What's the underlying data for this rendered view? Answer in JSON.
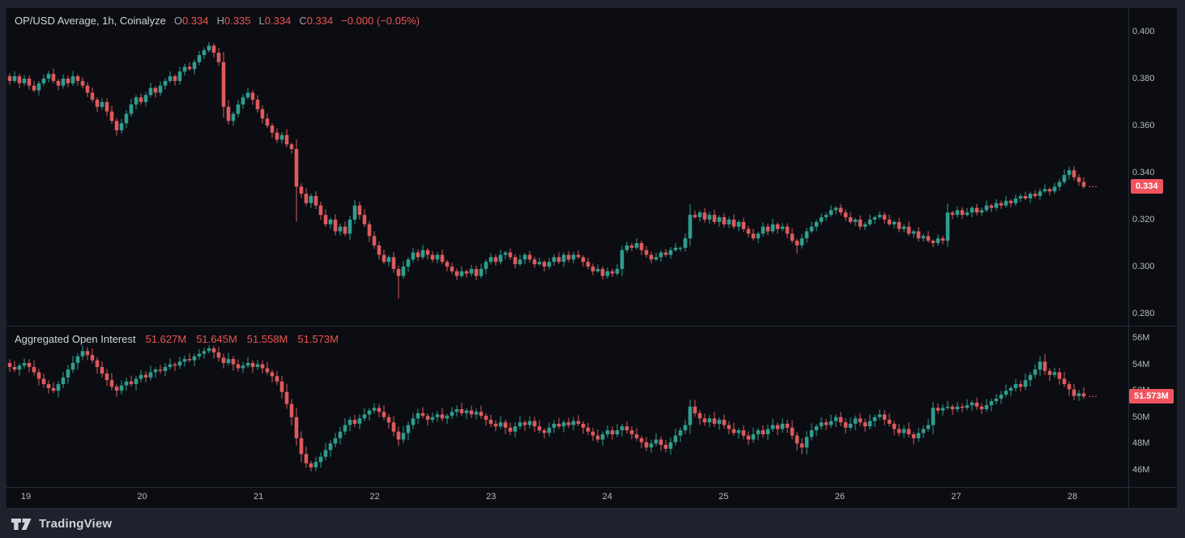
{
  "header": {
    "title": "OP/USD Average, 1h, Coinalyze",
    "o_label": "O",
    "o_value": "0.334",
    "h_label": "H",
    "h_value": "0.335",
    "l_label": "L",
    "l_value": "0.334",
    "c_label": "C",
    "c_value": "0.334",
    "change": "−0.000 (−0.05%)"
  },
  "oi_header": {
    "title": "Aggregated Open Interest",
    "values": [
      "51.627M",
      "51.645M",
      "51.558M",
      "51.573M"
    ]
  },
  "price_axis": {
    "last_price_label": "0.334"
  },
  "oi_axis": {
    "last_label": "51.573M"
  },
  "branding": {
    "logo_text": "TradingView"
  },
  "colors": {
    "up": "#2f9e8f",
    "down": "#dd5a5e",
    "badge": "#f0545e",
    "red_text": "#ef5350",
    "background": "#0b0d12",
    "frame": "#1e222d",
    "border": "#262b38",
    "text": "#b6b9c1"
  },
  "chart_data": [
    {
      "type": "candlestick",
      "name": "OP/USD Average, 1h, Coinalyze",
      "pane": "price",
      "ohlc_legend": {
        "open": 0.334,
        "high": 0.335,
        "low": 0.334,
        "close": 0.334,
        "change_pct": -0.05
      },
      "y_axis": {
        "ticks": [
          "0.400",
          "0.380",
          "0.360",
          "0.340",
          "0.320",
          "0.300",
          "0.280"
        ],
        "tick_values": [
          0.4,
          0.38,
          0.36,
          0.34,
          0.32,
          0.3,
          0.28
        ],
        "range": [
          0.28,
          0.4
        ],
        "grid": false,
        "side": "right"
      },
      "last_price": 0.334,
      "closes": [
        0.379,
        0.381,
        0.378,
        0.38,
        0.377,
        0.375,
        0.378,
        0.38,
        0.382,
        0.379,
        0.377,
        0.38,
        0.378,
        0.381,
        0.379,
        0.377,
        0.374,
        0.371,
        0.368,
        0.37,
        0.366,
        0.362,
        0.358,
        0.361,
        0.365,
        0.369,
        0.372,
        0.37,
        0.373,
        0.376,
        0.374,
        0.377,
        0.379,
        0.381,
        0.379,
        0.383,
        0.385,
        0.384,
        0.387,
        0.39,
        0.392,
        0.394,
        0.391,
        0.387,
        0.368,
        0.362,
        0.365,
        0.369,
        0.372,
        0.374,
        0.371,
        0.367,
        0.363,
        0.36,
        0.357,
        0.354,
        0.356,
        0.352,
        0.35,
        0.334,
        0.331,
        0.327,
        0.33,
        0.326,
        0.322,
        0.318,
        0.32,
        0.315,
        0.317,
        0.314,
        0.32,
        0.326,
        0.322,
        0.318,
        0.313,
        0.309,
        0.305,
        0.302,
        0.304,
        0.299,
        0.296,
        0.3,
        0.303,
        0.306,
        0.304,
        0.307,
        0.305,
        0.303,
        0.305,
        0.302,
        0.3,
        0.298,
        0.296,
        0.298,
        0.297,
        0.299,
        0.296,
        0.299,
        0.302,
        0.304,
        0.302,
        0.305,
        0.306,
        0.304,
        0.301,
        0.303,
        0.305,
        0.303,
        0.301,
        0.302,
        0.3,
        0.302,
        0.304,
        0.302,
        0.305,
        0.303,
        0.305,
        0.304,
        0.302,
        0.3,
        0.298,
        0.299,
        0.296,
        0.298,
        0.297,
        0.299,
        0.307,
        0.309,
        0.308,
        0.31,
        0.307,
        0.305,
        0.303,
        0.304,
        0.306,
        0.305,
        0.307,
        0.308,
        0.308,
        0.312,
        0.322,
        0.321,
        0.323,
        0.32,
        0.322,
        0.319,
        0.321,
        0.318,
        0.32,
        0.317,
        0.319,
        0.316,
        0.314,
        0.312,
        0.314,
        0.317,
        0.315,
        0.318,
        0.316,
        0.317,
        0.314,
        0.311,
        0.309,
        0.312,
        0.315,
        0.317,
        0.319,
        0.321,
        0.322,
        0.324,
        0.325,
        0.323,
        0.321,
        0.319,
        0.32,
        0.317,
        0.318,
        0.32,
        0.321,
        0.322,
        0.32,
        0.318,
        0.319,
        0.316,
        0.317,
        0.314,
        0.315,
        0.312,
        0.313,
        0.311,
        0.31,
        0.312,
        0.311,
        0.323,
        0.322,
        0.324,
        0.322,
        0.323,
        0.325,
        0.323,
        0.324,
        0.326,
        0.325,
        0.327,
        0.326,
        0.328,
        0.327,
        0.329,
        0.33,
        0.329,
        0.331,
        0.33,
        0.332,
        0.333,
        0.332,
        0.334,
        0.336,
        0.339,
        0.341,
        0.338,
        0.336,
        0.334
      ],
      "wick_high_overrides": {
        "41": 0.3955,
        "140": 0.3265,
        "218": 0.3425
      },
      "wick_low_overrides": {
        "59": 0.319,
        "80": 0.2865,
        "122": 0.2945,
        "162": 0.3055
      }
    },
    {
      "type": "candlestick",
      "name": "Aggregated Open Interest",
      "pane": "oi",
      "unit": "M",
      "ohlc_legend": {
        "open": 51.627,
        "high": 51.645,
        "low": 51.558,
        "close": 51.573
      },
      "y_axis": {
        "ticks": [
          "56M",
          "54M",
          "52M",
          "50M",
          "48M",
          "46M"
        ],
        "tick_values": [
          56,
          54,
          52,
          50,
          48,
          46
        ],
        "range": [
          46,
          56
        ],
        "grid": false,
        "side": "right"
      },
      "last_price": 51.573,
      "closes": [
        53.8,
        53.6,
        53.9,
        54.1,
        53.8,
        53.4,
        52.9,
        52.5,
        52.2,
        52.0,
        52.5,
        53.0,
        53.6,
        54.1,
        54.6,
        55.0,
        54.7,
        54.3,
        53.8,
        53.3,
        52.8,
        52.3,
        52.0,
        52.4,
        52.7,
        52.5,
        52.9,
        53.2,
        53.0,
        53.4,
        53.6,
        53.5,
        53.8,
        54.0,
        53.9,
        54.2,
        54.4,
        54.3,
        54.6,
        54.8,
        55.0,
        55.2,
        54.9,
        54.5,
        54.1,
        54.4,
        54.0,
        53.7,
        53.9,
        54.1,
        53.8,
        54.0,
        53.7,
        53.4,
        53.1,
        52.7,
        51.9,
        51.0,
        50.0,
        48.4,
        47.2,
        46.5,
        46.2,
        46.6,
        47.0,
        47.5,
        48.0,
        48.4,
        48.9,
        49.4,
        49.8,
        49.5,
        49.9,
        50.2,
        50.5,
        50.7,
        50.4,
        50.0,
        49.6,
        48.9,
        48.3,
        48.8,
        49.4,
        49.9,
        50.3,
        50.1,
        49.8,
        50.0,
        50.2,
        49.9,
        50.1,
        50.4,
        50.6,
        50.3,
        50.5,
        50.2,
        50.4,
        50.1,
        49.8,
        49.5,
        49.3,
        49.6,
        49.2,
        48.9,
        49.3,
        49.6,
        49.4,
        49.7,
        49.3,
        49.0,
        48.8,
        49.2,
        49.5,
        49.3,
        49.6,
        49.4,
        49.7,
        49.5,
        49.2,
        48.9,
        48.6,
        48.3,
        48.7,
        49.0,
        48.7,
        49.0,
        49.3,
        49.0,
        48.7,
        48.4,
        48.1,
        47.7,
        48.0,
        48.3,
        47.9,
        47.6,
        48.1,
        48.6,
        49.0,
        49.4,
        50.8,
        50.3,
        49.9,
        49.6,
        49.9,
        49.5,
        49.8,
        49.4,
        49.1,
        48.8,
        49.0,
        48.6,
        48.3,
        48.7,
        49.0,
        48.7,
        49.1,
        49.4,
        49.1,
        49.5,
        49.2,
        48.6,
        48.0,
        47.7,
        48.5,
        49.0,
        49.3,
        49.6,
        49.4,
        49.7,
        50.0,
        49.6,
        49.2,
        49.5,
        49.9,
        49.6,
        49.3,
        49.7,
        50.0,
        50.2,
        49.8,
        49.5,
        49.1,
        48.8,
        49.1,
        48.7,
        48.4,
        48.8,
        49.1,
        49.4,
        50.7,
        50.5,
        50.7,
        50.8,
        50.6,
        50.8,
        50.7,
        50.9,
        51.1,
        50.8,
        50.6,
        50.9,
        51.2,
        51.4,
        51.7,
        52.0,
        52.2,
        52.5,
        52.3,
        52.8,
        53.2,
        53.6,
        54.2,
        53.5,
        53.2,
        53.4,
        52.9,
        52.5,
        52.1,
        51.6,
        51.8,
        51.573
      ],
      "wick_high_overrides": {
        "41": 55.45,
        "140": 51.3,
        "212": 54.6
      },
      "wick_low_overrides": {
        "62": 45.9,
        "163": 47.2
      }
    }
  ],
  "time_axis": {
    "labels": [
      "19",
      "20",
      "21",
      "22",
      "23",
      "24",
      "25",
      "26",
      "27",
      "28"
    ]
  }
}
